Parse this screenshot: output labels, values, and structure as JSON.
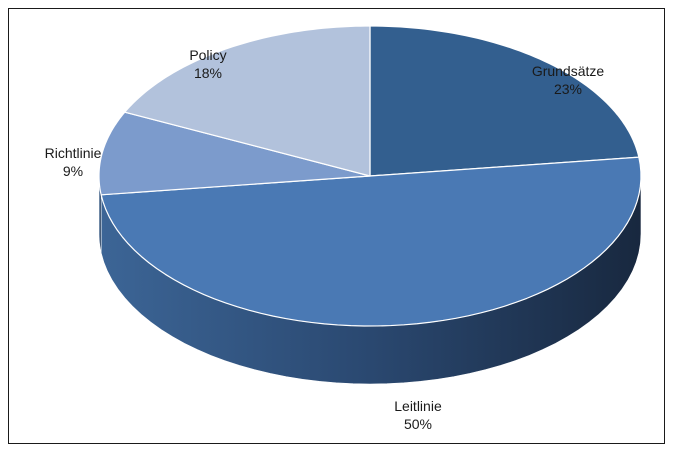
{
  "chart_data": {
    "type": "pie",
    "style": "3d",
    "title": "",
    "categories": [
      "Grundsätze",
      "Leitlinie",
      "Richtlinie",
      "Policy"
    ],
    "values": [
      23,
      50,
      9,
      18
    ],
    "labels": [
      "23%",
      "50%",
      "9%",
      "18%"
    ],
    "colors": [
      "#335f8f",
      "#4a79b4",
      "#7c9bcc",
      "#b2c2dc"
    ],
    "side_colors": [
      "#1d3656",
      "#2b4a74",
      "#4b6a98",
      "#7a8fb5"
    ],
    "legend": "none"
  }
}
